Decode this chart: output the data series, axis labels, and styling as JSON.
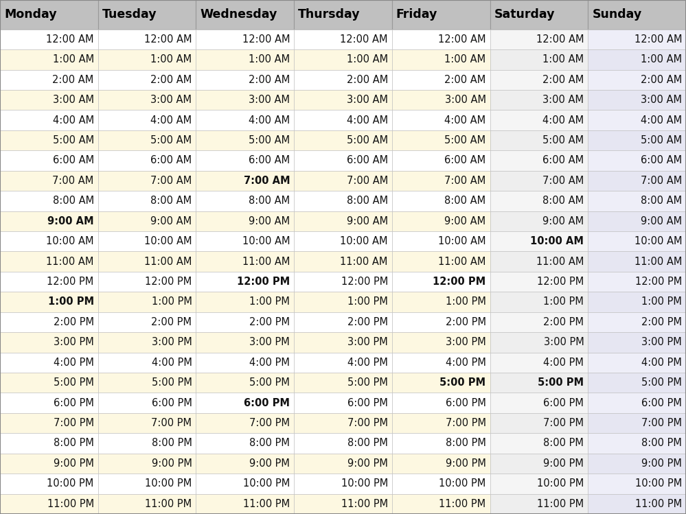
{
  "days": [
    "Monday",
    "Tuesday",
    "Wednesday",
    "Thursday",
    "Friday",
    "Saturday",
    "Sunday"
  ],
  "times": [
    "12:00 AM",
    "1:00 AM",
    "2:00 AM",
    "3:00 AM",
    "4:00 AM",
    "5:00 AM",
    "6:00 AM",
    "7:00 AM",
    "8:00 AM",
    "9:00 AM",
    "10:00 AM",
    "11:00 AM",
    "12:00 PM",
    "1:00 PM",
    "2:00 PM",
    "3:00 PM",
    "4:00 PM",
    "5:00 PM",
    "6:00 PM",
    "7:00 PM",
    "8:00 PM",
    "9:00 PM",
    "10:00 PM",
    "11:00 PM"
  ],
  "header_bg": "#c0c0c0",
  "col_bg": {
    "Monday": [
      "#ffffff",
      "#fdf8e1"
    ],
    "Tuesday": [
      "#ffffff",
      "#fdf8e1"
    ],
    "Wednesday": [
      "#ffffff",
      "#fdf8e1"
    ],
    "Thursday": [
      "#ffffff",
      "#fdf8e1"
    ],
    "Friday": [
      "#ffffff",
      "#fdf8e1"
    ],
    "Saturday": [
      "#f5f5f5",
      "#eeeeee"
    ],
    "Sunday": [
      "#eeeef8",
      "#e6e6f2"
    ]
  },
  "bold_map": {
    "0": [
      9,
      13
    ],
    "2": [
      7,
      12,
      18
    ],
    "4": [
      12,
      17
    ],
    "5": [
      10,
      17
    ]
  },
  "grid_color": "#cccccc",
  "font_size": 10.5,
  "header_font_size": 12.5,
  "fig_width": 9.99,
  "fig_height": 7.49,
  "dpi": 100
}
